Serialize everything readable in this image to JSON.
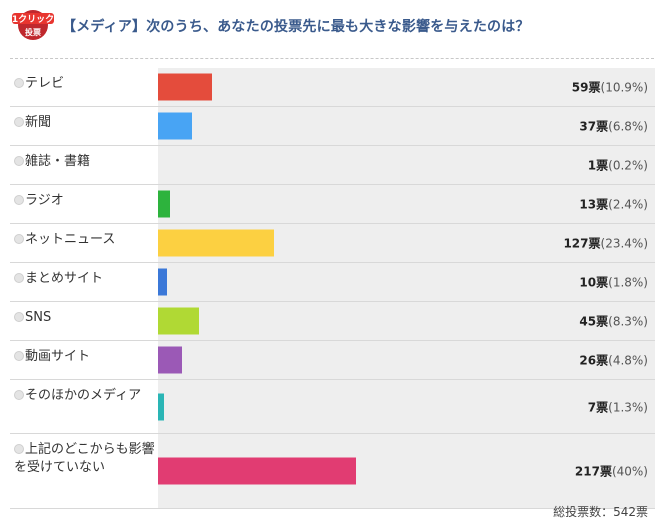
{
  "header": {
    "badge": {
      "line1": "1クリック",
      "line2": "投票",
      "icon": "one-click-vote-badge",
      "color": "#c0282d"
    },
    "title": "【メディア】次のうち、あなたの投票先に最も大きな影響を与えたのは？"
  },
  "options": [
    {
      "label": "テレビ",
      "votes": "59",
      "unit": "票",
      "percent": "(10.9%)",
      "pct": 10.9,
      "color": "#e44c3c",
      "height": 38
    },
    {
      "label": "新聞",
      "votes": "37",
      "unit": "票",
      "percent": "(6.8%)",
      "pct": 6.8,
      "color": "#48a4f4",
      "height": 38
    },
    {
      "label": "雑誌・書籍",
      "votes": "1",
      "unit": "票",
      "percent": "(0.2%)",
      "pct": 0.2,
      "color": "#e44c3c",
      "height": 38
    },
    {
      "label": "ラジオ",
      "votes": "13",
      "unit": "票",
      "percent": "(2.4%)",
      "pct": 2.4,
      "color": "#2db33d",
      "height": 38
    },
    {
      "label": "ネットニュース",
      "votes": "127",
      "unit": "票",
      "percent": "(23.4%)",
      "pct": 23.4,
      "color": "#fcd041",
      "height": 38
    },
    {
      "label": "まとめサイト",
      "votes": "10",
      "unit": "票",
      "percent": "(1.8%)",
      "pct": 1.8,
      "color": "#3b78d8",
      "height": 38
    },
    {
      "label": "SNS",
      "votes": "45",
      "unit": "票",
      "percent": "(8.3%)",
      "pct": 8.3,
      "color": "#b0d934",
      "height": 38
    },
    {
      "label": "動画サイト",
      "votes": "26",
      "unit": "票",
      "percent": "(4.8%)",
      "pct": 4.8,
      "color": "#9b59b6",
      "height": 38
    },
    {
      "label": "そのほかのメディア",
      "votes": "7",
      "unit": "票",
      "percent": "(1.3%)",
      "pct": 1.3,
      "color": "#2ab5b5",
      "height": 53
    },
    {
      "label": "上記のどこからも影響を受けていない",
      "votes": "217",
      "unit": "票",
      "percent": "(40%)",
      "pct": 40,
      "color": "#e13c72",
      "height": 74
    }
  ],
  "total": "総投票数：542票",
  "chart_data": {
    "type": "bar",
    "orientation": "horizontal",
    "title": "【メディア】次のうち、あなたの投票先に最も大きな影響を与えたのは？",
    "categories": [
      "テレビ",
      "新聞",
      "雑誌・書籍",
      "ラジオ",
      "ネットニュース",
      "まとめサイト",
      "SNS",
      "動画サイト",
      "そのほかのメディア",
      "上記のどこからも影響を受けていない"
    ],
    "series": [
      {
        "name": "票",
        "values": [
          59,
          37,
          1,
          13,
          127,
          10,
          45,
          26,
          7,
          217
        ]
      },
      {
        "name": "%",
        "values": [
          10.9,
          6.8,
          0.2,
          2.4,
          23.4,
          1.8,
          8.3,
          4.8,
          1.3,
          40
        ]
      }
    ],
    "colors": [
      "#e44c3c",
      "#48a4f4",
      "#e44c3c",
      "#2db33d",
      "#fcd041",
      "#3b78d8",
      "#b0d934",
      "#9b59b6",
      "#2ab5b5",
      "#e13c72"
    ],
    "total_votes": 542,
    "xlabel": "",
    "ylabel": "",
    "grid": false,
    "legend": "none"
  }
}
